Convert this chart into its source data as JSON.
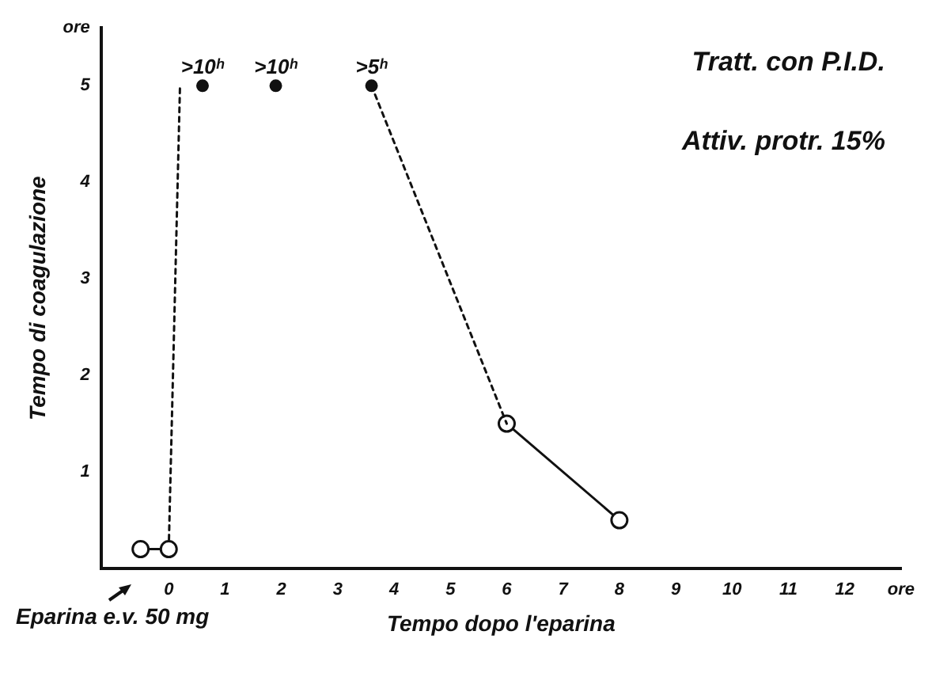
{
  "chart_data": {
    "type": "line",
    "ylabel": "Tempo di coagulazione",
    "xlabel": "Tempo dopo l'eparina",
    "xlim": [
      -1.2,
      13
    ],
    "xticks": [
      0,
      1,
      2,
      3,
      4,
      5,
      6,
      7,
      8,
      9,
      10,
      11,
      12,
      {
        "value": 13,
        "label": "ore"
      }
    ],
    "ylim": [
      0,
      5.6
    ],
    "yticks": [
      1,
      2,
      3,
      4,
      5,
      {
        "value": 5.6,
        "label": "ore"
      }
    ],
    "grid": false,
    "legend": false,
    "series": [
      {
        "color": "#111111",
        "marker": "circle",
        "line_style": "solid",
        "x": [
          -0.5,
          0
        ],
        "values": [
          0.2,
          0.2
        ]
      },
      {
        "color": "#111111",
        "line_style": "dotted",
        "x": [
          0,
          0.2
        ],
        "values": [
          0.2,
          5
        ]
      },
      {
        "type": "scatter",
        "color": "#111111",
        "marker": "circle",
        "x": [
          0.6,
          1.9,
          3.6
        ],
        "values": [
          5,
          5,
          5
        ]
      },
      {
        "color": "#111111",
        "line_style": "dotted",
        "x": [
          3.6,
          6
        ],
        "values": [
          5,
          1.5
        ]
      },
      {
        "color": "#111111",
        "marker": "circle",
        "line_style": "solid",
        "x": [
          6,
          8
        ],
        "values": [
          1.5,
          0.5
        ]
      }
    ],
    "annotations": [
      "Tratt. con P.I.D.",
      "Attiv. protr. 15%",
      "Eparina e.v. 50 mg",
      {
        "text": ">10ʰ",
        "x": 0.6,
        "y": 5
      },
      {
        "text": ">10ʰ",
        "x": 1.9,
        "y": 5
      },
      {
        "text": ">5ʰ",
        "x": 3.6,
        "y": 5
      }
    ]
  }
}
